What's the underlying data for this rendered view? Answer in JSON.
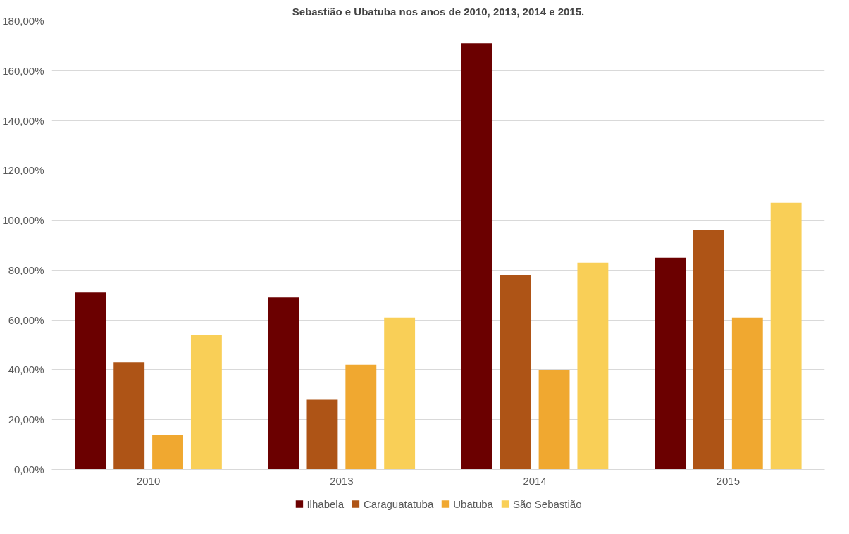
{
  "chart_data": {
    "type": "bar",
    "title": "Sebastião e Ubatuba nos anos de 2010, 2013, 2014 e 2015.",
    "categories": [
      "2010",
      "2013",
      "2014",
      "2015"
    ],
    "series": [
      {
        "name": "Ilhabela",
        "color": "#6b0000",
        "values": [
          71,
          69,
          171,
          85
        ]
      },
      {
        "name": "Caraguatatuba",
        "color": "#ae5416",
        "values": [
          43,
          28,
          78,
          96
        ]
      },
      {
        "name": "Ubatuba",
        "color": "#f0a830",
        "values": [
          14,
          42,
          40,
          61
        ]
      },
      {
        "name": "São Sebastião",
        "color": "#f9cf57",
        "values": [
          54,
          61,
          83,
          107
        ]
      }
    ],
    "ylim": [
      0,
      180
    ],
    "yticks": [
      {
        "value": 0,
        "label": "0,00%"
      },
      {
        "value": 20,
        "label": "20,00%"
      },
      {
        "value": 40,
        "label": "40,00%"
      },
      {
        "value": 60,
        "label": "60,00%"
      },
      {
        "value": 80,
        "label": "80,00%"
      },
      {
        "value": 100,
        "label": "100,00%"
      },
      {
        "value": 120,
        "label": "120,00%"
      },
      {
        "value": 140,
        "label": "140,00%"
      },
      {
        "value": 160,
        "label": "160,00%"
      },
      {
        "value": 180,
        "label": "180,00%"
      }
    ],
    "grid": "y",
    "legend": "bottom"
  }
}
